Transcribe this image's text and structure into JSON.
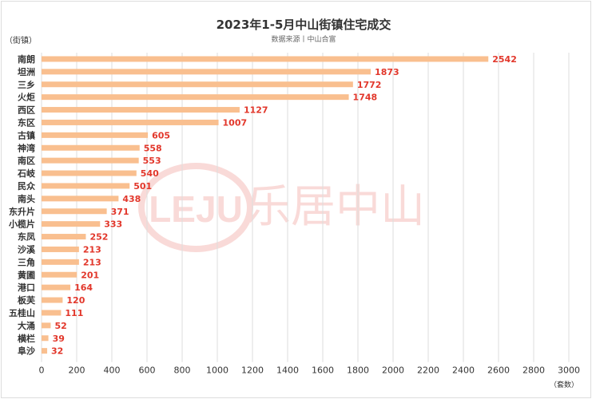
{
  "chart_data": {
    "type": "bar",
    "orientation": "horizontal",
    "title": "2023年1-5月中山街镇住宅成交",
    "subtitle": "数据来源丨中山合富",
    "ylabel": "（街镇）",
    "xlabel": "（套数）",
    "categories": [
      "南朗",
      "坦洲",
      "三乡",
      "火炬",
      "西区",
      "东区",
      "古镇",
      "神湾",
      "南区",
      "石岐",
      "民众",
      "南头",
      "东升片",
      "小榄片",
      "东凤",
      "沙溪",
      "三角",
      "黄圃",
      "港口",
      "板芙",
      "五桂山",
      "大涌",
      "横栏",
      "阜沙"
    ],
    "values": [
      2542,
      1873,
      1772,
      1748,
      1127,
      1007,
      605,
      558,
      553,
      540,
      501,
      438,
      371,
      333,
      252,
      213,
      213,
      201,
      164,
      120,
      111,
      52,
      39,
      32
    ],
    "xlim": [
      0,
      3000
    ],
    "xticks": [
      0,
      200,
      400,
      600,
      800,
      1000,
      1200,
      1400,
      1600,
      1800,
      2000,
      2200,
      2400,
      2600,
      2800,
      3000
    ],
    "grid": "vertical",
    "legend": "none",
    "colors": {
      "bar": "#f9bf8f",
      "label": "#e2372b",
      "grid": "#dddddd",
      "text": "#333333"
    },
    "watermark": "LEJU 乐居中山"
  }
}
